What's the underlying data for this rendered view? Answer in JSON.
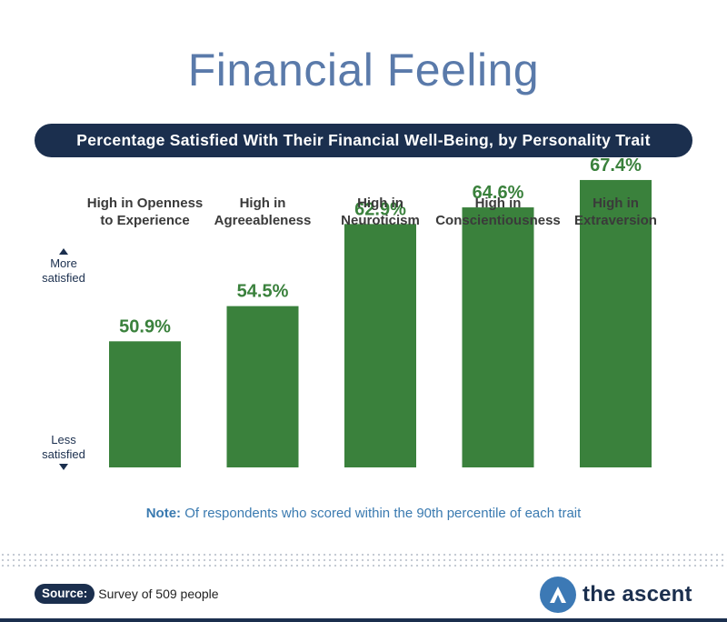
{
  "header": {
    "title": "Financial Feeling",
    "subtitle": "Percentage Satisfied With Their Financial Well-Being, by Personality Trait"
  },
  "chart_data": {
    "type": "bar",
    "categories": [
      [
        "High in Openness",
        "to Experience"
      ],
      [
        "High in",
        "Agreeableness"
      ],
      [
        "High in",
        "Neuroticism"
      ],
      [
        "High in",
        "Conscientiousness"
      ],
      [
        "High in",
        "Extraversion"
      ]
    ],
    "values": [
      50.9,
      54.5,
      62.9,
      64.6,
      67.4
    ],
    "value_labels": [
      "50.9%",
      "54.5%",
      "62.9%",
      "64.6%",
      "67.4%"
    ],
    "axis": {
      "top_label": [
        "More",
        "satisfied"
      ],
      "bottom_label": [
        "Less",
        "satisfied"
      ]
    },
    "ylim": [
      38,
      70
    ],
    "bar_color": "#3a813c",
    "label_color": "#3a813c",
    "grid": false,
    "legend": "none"
  },
  "note": {
    "label": "Note:",
    "text": " Of respondents who scored within the 90th percentile of each trait"
  },
  "source": {
    "label": "Source:",
    "text": "Survey of 509 people"
  },
  "brand": {
    "name": "the ascent",
    "icon": "ascent-logo-icon",
    "navy": "#1b2f4e",
    "blue": "#3c79b5"
  }
}
